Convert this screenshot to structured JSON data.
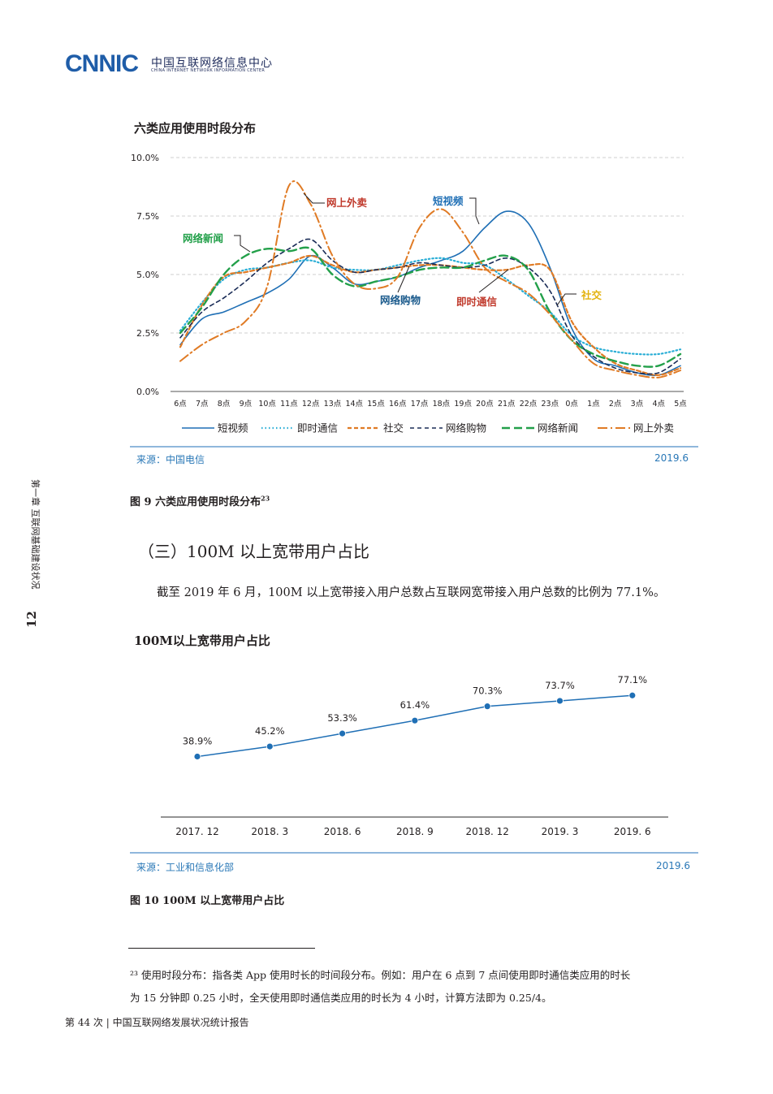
{
  "header": {
    "logo_mark": "CNNIC",
    "logo_cn": "中国互联网络信息中心",
    "logo_en": "CHINA INTERNET NETWORK INFORMATION CENTER"
  },
  "side": {
    "page_number": "12",
    "chapter": "第一章  互联网基础建设状况"
  },
  "figure9": {
    "title": "六类应用使用时段分布",
    "source": "来源：中国电信",
    "date": "2019.6",
    "caption": "图 9   六类应用使用时段分布",
    "caption_sup": "23",
    "callouts": {
      "waimai": "网上外卖",
      "shipin": "短视频",
      "xinwen": "网络新闻",
      "shejiao": "社交",
      "gouwu": "网络购物",
      "tongxin": "即时通信"
    },
    "callout_colors": {
      "waimai": "#c0392b",
      "shipin": "#1f6fb5",
      "xinwen": "#23a04a",
      "shejiao": "#e3b20d",
      "gouwu": "#1a5a8c",
      "tongxin": "#c0392b"
    }
  },
  "figure10": {
    "title": "100M以上宽带用户占比",
    "source": "来源：工业和信息化部",
    "date": "2019.6",
    "caption": "图 10   100M 以上宽带用户占比"
  },
  "section": {
    "heading": "（三）100M 以上宽带用户占比",
    "paragraph": "截至 2019 年 6 月，100M 以上宽带接入用户总数占互联网宽带接入用户总数的比例为 77.1%。"
  },
  "footnote": {
    "line1": "²³ 使用时段分布：指各类 App 使用时长的时间段分布。例如：用户在 6 点到 7 点间使用即时通信类应用的时长",
    "line2": "为 15 分钟即 0.25 小时，全天使用即时通信类应用的时长为 4 小时，计算方法即为 0.25/4。"
  },
  "footer": "第 44 次 | 中国互联网络发展状况统计报告",
  "chart_data": [
    {
      "type": "line",
      "title": "六类应用使用时段分布",
      "ylim": [
        0,
        10
      ],
      "y_ticks": [
        "0.0%",
        "2.5%",
        "5.0%",
        "7.5%",
        "10.0%"
      ],
      "grid": true,
      "legend": "bottom",
      "categories": [
        "6点",
        "7点",
        "8点",
        "9点",
        "10点",
        "11点",
        "12点",
        "13点",
        "14点",
        "15点",
        "16点",
        "17点",
        "18点",
        "19点",
        "20点",
        "21点",
        "22点",
        "23点",
        "0点",
        "1点",
        "2点",
        "3点",
        "4点",
        "5点"
      ],
      "series": [
        {
          "name": "短视频",
          "color": "#1f6fb5",
          "dash": "",
          "width": 1.6,
          "values": [
            2.0,
            3.1,
            3.4,
            3.8,
            4.2,
            4.8,
            5.8,
            5.3,
            4.6,
            4.7,
            4.9,
            5.3,
            5.6,
            6.0,
            7.0,
            7.7,
            7.2,
            5.3,
            2.7,
            1.4,
            1.1,
            0.8,
            0.7,
            1.1
          ]
        },
        {
          "name": "即时通信",
          "color": "#2aaed6",
          "dash": "1.5 3",
          "width": 2.2,
          "values": [
            2.6,
            3.8,
            4.8,
            5.2,
            5.3,
            5.5,
            5.6,
            5.3,
            5.2,
            5.2,
            5.4,
            5.6,
            5.7,
            5.5,
            5.4,
            4.8,
            4.1,
            3.4,
            2.4,
            1.9,
            1.7,
            1.6,
            1.6,
            1.8
          ]
        },
        {
          "name": "社交",
          "color": "#e07b25",
          "dash": "5 3",
          "width": 2.2,
          "values": [
            1.9,
            3.7,
            4.9,
            5.1,
            5.3,
            5.5,
            5.8,
            5.4,
            5.1,
            5.2,
            5.3,
            5.4,
            5.4,
            5.3,
            5.2,
            5.2,
            5.4,
            5.2,
            3.0,
            1.9,
            1.2,
            0.9,
            0.7,
            1.0
          ]
        },
        {
          "name": "网络购物",
          "color": "#1a2c57",
          "dash": "5 4",
          "width": 1.6,
          "values": [
            2.3,
            3.4,
            4.0,
            4.7,
            5.5,
            6.1,
            6.5,
            5.6,
            5.1,
            5.2,
            5.3,
            5.5,
            5.4,
            5.3,
            5.4,
            5.7,
            5.3,
            4.3,
            2.4,
            1.5,
            1.0,
            0.8,
            0.8,
            1.4
          ]
        },
        {
          "name": "网络新闻",
          "color": "#23a04a",
          "dash": "10 5",
          "width": 2.4,
          "values": [
            2.5,
            3.6,
            5.0,
            5.8,
            6.1,
            6.0,
            6.1,
            5.0,
            4.5,
            4.7,
            4.9,
            5.2,
            5.3,
            5.3,
            5.6,
            5.8,
            5.2,
            3.4,
            2.2,
            1.6,
            1.3,
            1.1,
            1.1,
            1.6
          ]
        },
        {
          "name": "网上外卖",
          "color": "#e07b25",
          "dash": "12 4 2 4",
          "width": 2.0,
          "values": [
            1.3,
            2.0,
            2.5,
            3.0,
            4.5,
            8.8,
            8.0,
            5.8,
            4.6,
            4.4,
            4.9,
            7.0,
            7.8,
            6.8,
            5.3,
            4.7,
            4.2,
            3.3,
            2.2,
            1.2,
            0.9,
            0.7,
            0.6,
            0.9
          ]
        }
      ]
    },
    {
      "type": "line",
      "title": "100M以上宽带用户占比",
      "categories": [
        "2017. 12",
        "2018. 3",
        "2018. 6",
        "2018. 9",
        "2018. 12",
        "2019. 3",
        "2019. 6"
      ],
      "values": [
        38.9,
        45.2,
        53.3,
        61.4,
        70.3,
        73.7,
        77.1
      ],
      "labels": [
        "38.9%",
        "45.2%",
        "53.3%",
        "61.4%",
        "70.3%",
        "73.7%",
        "77.1%"
      ],
      "color": "#1f6fb5",
      "grid": false,
      "ylim": [
        0,
        100
      ]
    }
  ]
}
